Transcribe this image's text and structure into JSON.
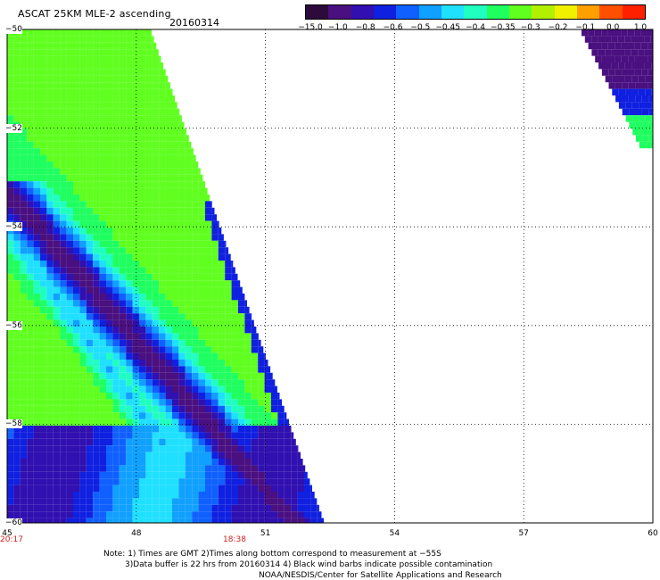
{
  "header": {
    "title": "ASCAT 25KM MLE-2 ascending",
    "date": "20160314"
  },
  "colorbar": {
    "labels": [
      "−15.0",
      "−1.0",
      "−0.8",
      "−0.6",
      "−0.5",
      "−0.45",
      "−0.4",
      "−0.35",
      "−0.3",
      "−0.2",
      "−0.1",
      "0.0",
      "1.0"
    ],
    "colors": [
      "#2d0a3c",
      "#4a1080",
      "#3010b0",
      "#1020e0",
      "#1060ff",
      "#10a0ff",
      "#20e0ff",
      "#20ffc0",
      "#20ff60",
      "#60ff20",
      "#b0f000",
      "#f0f000",
      "#ffa000",
      "#ff5000",
      "#ff2000"
    ]
  },
  "map": {
    "longitude_labels": [
      "45",
      "48",
      "51",
      "54",
      "57",
      "60"
    ],
    "latitude_labels": [
      "−50",
      "−52",
      "−54",
      "−56",
      "−58",
      "−60"
    ],
    "longitude_range": [
      45,
      60
    ],
    "latitude_range": [
      -50,
      -60
    ],
    "time_labels": [
      {
        "text": "20:17",
        "lon": 45
      },
      {
        "text": "18:38",
        "lon": 50.2
      }
    ]
  },
  "notes": {
    "line1": "Note: 1) Times are GMT 2)Times along bottom correspond to measurement at −55S",
    "line2": "3)Data buffer is 22 hrs from 20160314 4) Black wind barbs indicate possible contamination",
    "line3": "NOAA/NESDIS/Center for Satellite Applications and Research"
  }
}
